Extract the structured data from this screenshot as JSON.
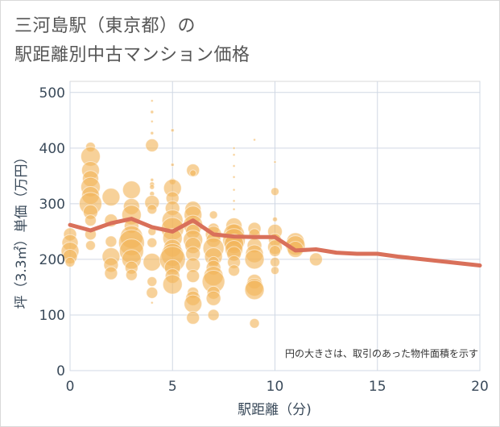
{
  "title_line1": "三河島駅（東京都）の",
  "title_line2": "駅距離別中古マンション価格",
  "chart_data": {
    "type": "scatter",
    "xlabel": "駅距離（分)",
    "ylabel": "坪（3.3㎡）単価（万円）",
    "xlim": [
      0,
      20
    ],
    "ylim": [
      0,
      520
    ],
    "x_ticks": [
      "0",
      "5",
      "10",
      "15",
      "20"
    ],
    "y_ticks": [
      "0",
      "100",
      "200",
      "300",
      "400",
      "500"
    ],
    "grid": true,
    "note": "円の大きさは、取引のあった物件面積を示す",
    "colors": {
      "bubble": "#f2b45a",
      "line": "#d9705a",
      "grid": "#d0d8e4"
    },
    "line": {
      "x": [
        0,
        1,
        2,
        3,
        4,
        5,
        6,
        7,
        8,
        9,
        10,
        11,
        12,
        13,
        14,
        15,
        16,
        17,
        18,
        19,
        20
      ],
      "y": [
        262,
        252,
        265,
        273,
        258,
        250,
        270,
        245,
        241,
        240,
        240,
        216,
        218,
        212,
        210,
        210,
        205,
        201,
        197,
        193,
        189
      ]
    },
    "bubbles": [
      [
        0,
        245,
        8
      ],
      [
        0,
        230,
        10
      ],
      [
        0,
        215,
        11
      ],
      [
        0,
        205,
        9
      ],
      [
        0,
        195,
        6
      ],
      [
        1,
        402,
        6
      ],
      [
        1,
        385,
        12
      ],
      [
        1,
        360,
        11
      ],
      [
        1,
        345,
        10
      ],
      [
        1,
        330,
        12
      ],
      [
        1,
        315,
        11
      ],
      [
        1,
        300,
        14
      ],
      [
        1,
        285,
        9
      ],
      [
        1,
        270,
        7
      ],
      [
        1,
        245,
        7
      ],
      [
        1,
        225,
        6
      ],
      [
        2,
        312,
        11
      ],
      [
        2,
        270,
        8
      ],
      [
        2,
        232,
        7
      ],
      [
        2,
        205,
        11
      ],
      [
        2,
        190,
        9
      ],
      [
        2,
        175,
        8
      ],
      [
        3,
        325,
        11
      ],
      [
        3,
        295,
        10
      ],
      [
        3,
        280,
        12
      ],
      [
        3,
        260,
        9
      ],
      [
        3,
        240,
        14
      ],
      [
        3,
        230,
        16
      ],
      [
        3,
        215,
        15
      ],
      [
        3,
        200,
        12
      ],
      [
        3,
        185,
        8
      ],
      [
        3,
        172,
        7
      ],
      [
        4,
        485,
        1.5
      ],
      [
        4,
        465,
        2
      ],
      [
        4,
        448,
        1.5
      ],
      [
        4,
        427,
        2
      ],
      [
        4,
        405,
        8
      ],
      [
        4,
        343,
        2
      ],
      [
        4,
        335,
        3
      ],
      [
        4,
        330,
        3
      ],
      [
        4,
        318,
        3
      ],
      [
        4,
        302,
        9
      ],
      [
        4,
        290,
        6
      ],
      [
        4,
        250,
        5
      ],
      [
        4,
        230,
        6
      ],
      [
        4,
        195,
        11
      ],
      [
        4,
        160,
        6
      ],
      [
        4,
        140,
        7
      ],
      [
        4,
        122,
        1.5
      ],
      [
        5,
        432,
        2
      ],
      [
        5,
        370,
        2
      ],
      [
        5,
        340,
        4
      ],
      [
        5,
        328,
        11
      ],
      [
        5,
        310,
        8
      ],
      [
        5,
        292,
        9
      ],
      [
        5,
        270,
        13
      ],
      [
        5,
        255,
        14
      ],
      [
        5,
        238,
        12
      ],
      [
        5,
        220,
        11
      ],
      [
        5,
        208,
        14
      ],
      [
        5,
        200,
        16
      ],
      [
        5,
        185,
        10
      ],
      [
        5,
        170,
        9
      ],
      [
        5,
        155,
        12
      ],
      [
        6,
        360,
        8
      ],
      [
        6,
        355,
        4
      ],
      [
        6,
        290,
        10
      ],
      [
        6,
        280,
        11
      ],
      [
        6,
        262,
        12
      ],
      [
        6,
        250,
        9
      ],
      [
        6,
        235,
        12
      ],
      [
        6,
        225,
        10
      ],
      [
        6,
        210,
        9
      ],
      [
        6,
        190,
        9
      ],
      [
        6,
        170,
        8
      ],
      [
        6,
        140,
        7
      ],
      [
        6,
        130,
        9
      ],
      [
        6,
        120,
        11
      ],
      [
        6,
        95,
        8
      ],
      [
        7,
        280,
        5
      ],
      [
        7,
        255,
        7
      ],
      [
        7,
        245,
        10
      ],
      [
        7,
        235,
        9
      ],
      [
        7,
        220,
        13
      ],
      [
        7,
        205,
        11
      ],
      [
        7,
        195,
        7
      ],
      [
        7,
        185,
        9
      ],
      [
        7,
        170,
        12
      ],
      [
        7,
        160,
        14
      ],
      [
        7,
        140,
        8
      ],
      [
        7,
        130,
        9
      ],
      [
        7,
        100,
        7
      ],
      [
        8,
        400,
        1.5
      ],
      [
        8,
        388,
        1.5
      ],
      [
        8,
        368,
        1.5
      ],
      [
        8,
        348,
        1.5
      ],
      [
        8,
        325,
        1.5
      ],
      [
        8,
        305,
        1.5
      ],
      [
        8,
        290,
        1.5
      ],
      [
        8,
        260,
        10
      ],
      [
        8,
        250,
        9
      ],
      [
        8,
        245,
        13
      ],
      [
        8,
        235,
        14
      ],
      [
        8,
        228,
        12
      ],
      [
        8,
        218,
        11
      ],
      [
        8,
        210,
        9
      ],
      [
        8,
        195,
        8
      ],
      [
        8,
        180,
        7
      ],
      [
        9,
        415,
        1.5
      ],
      [
        9,
        255,
        8
      ],
      [
        9,
        245,
        7
      ],
      [
        9,
        225,
        9
      ],
      [
        9,
        210,
        11
      ],
      [
        9,
        200,
        12
      ],
      [
        9,
        160,
        9
      ],
      [
        9,
        150,
        11
      ],
      [
        9,
        145,
        12
      ],
      [
        9,
        85,
        6
      ],
      [
        10,
        375,
        1.5
      ],
      [
        10,
        322,
        5
      ],
      [
        10,
        272,
        3
      ],
      [
        10,
        250,
        9
      ],
      [
        10,
        235,
        8
      ],
      [
        10,
        222,
        9
      ],
      [
        10,
        215,
        7
      ],
      [
        10,
        195,
        6
      ],
      [
        10,
        180,
        5
      ],
      [
        11,
        232,
        11
      ],
      [
        11,
        225,
        12
      ],
      [
        11,
        218,
        10
      ],
      [
        12,
        200,
        8
      ]
    ]
  }
}
